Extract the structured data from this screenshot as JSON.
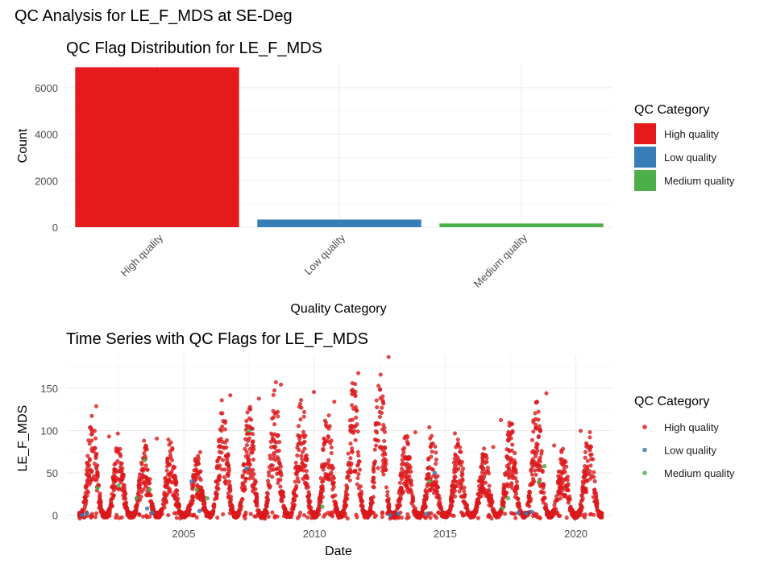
{
  "figure_title": "QC Analysis for LE_F_MDS at SE-Deg",
  "chart_data": [
    {
      "type": "bar",
      "title": "QC Flag Distribution for LE_F_MDS",
      "xlabel": "Quality Category",
      "ylabel": "Count",
      "categories": [
        "High quality",
        "Low quality",
        "Medium quality"
      ],
      "values": [
        6880,
        330,
        160
      ],
      "colors": [
        "#e41a1c",
        "#377eb8",
        "#4daf4a"
      ],
      "ylim": [
        0,
        7000
      ],
      "yticks": [
        0,
        2000,
        4000,
        6000
      ],
      "xtick_rotation": 45,
      "grid": true,
      "legend": {
        "title": "QC Category",
        "placement": "right",
        "entries": [
          "High quality",
          "Low quality",
          "Medium quality"
        ]
      }
    },
    {
      "type": "scatter",
      "title": "Time Series with QC Flags for LE_F_MDS",
      "xlabel": "Date",
      "ylabel": "LE_F_MDS",
      "xlim": [
        2000.5,
        2021.4
      ],
      "ylim": [
        -10,
        190
      ],
      "xticks": [
        2005,
        2010,
        2015,
        2020
      ],
      "yticks": [
        0,
        50,
        100,
        150
      ],
      "grid": true,
      "series": [
        {
          "name": "High quality",
          "color": "#e41a1c",
          "yearly_peaks": [
            [
              2001,
              128
            ],
            [
              2002,
              95
            ],
            [
              2003,
              90
            ],
            [
              2004,
              88
            ],
            [
              2005,
              72
            ],
            [
              2006,
              140
            ],
            [
              2007,
              135
            ],
            [
              2008,
              157
            ],
            [
              2009,
              146
            ],
            [
              2010,
              132
            ],
            [
              2011,
              165
            ],
            [
              2012,
              186
            ],
            [
              2013,
              97
            ],
            [
              2014,
              104
            ],
            [
              2015,
              97
            ],
            [
              2016,
              82
            ],
            [
              2017,
              115
            ],
            [
              2018,
              145
            ],
            [
              2019,
              80
            ],
            [
              2020,
              100
            ]
          ],
          "values_range": [
            -5,
            186
          ]
        },
        {
          "name": "Low quality",
          "color": "#377eb8",
          "points": [
            [
              2001.1,
              0
            ],
            [
              2001.3,
              2
            ],
            [
              2003.6,
              8
            ],
            [
              2003.8,
              3
            ],
            [
              2005.3,
              40
            ],
            [
              2005.6,
              5
            ],
            [
              2007.4,
              55
            ],
            [
              2012.9,
              0
            ],
            [
              2013.2,
              2
            ],
            [
              2014.3,
              2
            ],
            [
              2014.6,
              50
            ],
            [
              2017.8,
              3
            ],
            [
              2018.1,
              2
            ],
            [
              2018.3,
              4
            ]
          ]
        },
        {
          "name": "Medium quality",
          "color": "#4daf4a",
          "points": [
            [
              2001.7,
              32
            ],
            [
              2002.5,
              35
            ],
            [
              2003.2,
              20
            ],
            [
              2003.5,
              65
            ],
            [
              2003.7,
              30
            ],
            [
              2005.5,
              30
            ],
            [
              2005.9,
              20
            ],
            [
              2007.5,
              100
            ],
            [
              2010.3,
              10
            ],
            [
              2014.4,
              40
            ],
            [
              2017.2,
              8
            ],
            [
              2017.4,
              20
            ],
            [
              2018.6,
              40
            ],
            [
              2018.8,
              58
            ]
          ]
        }
      ],
      "legend": {
        "title": "QC Category",
        "placement": "right",
        "entries": [
          "High quality",
          "Low quality",
          "Medium quality"
        ]
      }
    }
  ]
}
